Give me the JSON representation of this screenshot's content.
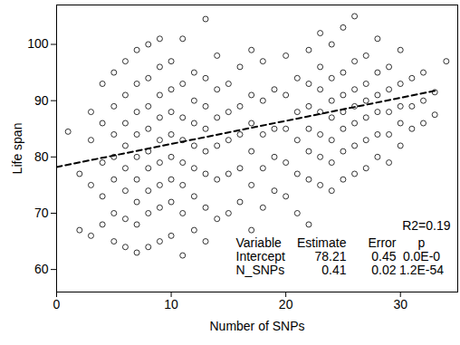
{
  "chart_data": {
    "type": "scatter",
    "x_label": "Number of SNPs",
    "y_label": "Life span",
    "xlim": [
      0,
      35
    ],
    "xticks": [
      0,
      10,
      20,
      30
    ],
    "ylim": [
      56,
      107
    ],
    "yticks": [
      60,
      70,
      80,
      90,
      100
    ],
    "grid": false,
    "marker": "circle",
    "color": "#000000",
    "x": [
      1,
      2,
      2,
      3,
      3,
      3,
      3,
      4,
      4,
      4,
      4,
      4,
      5,
      5,
      5,
      5,
      5,
      5,
      5,
      6,
      6,
      6,
      6,
      6,
      6,
      6,
      6,
      7,
      7,
      7,
      7,
      7,
      7,
      7,
      7,
      7,
      8,
      8,
      8,
      8,
      8,
      8,
      8,
      8,
      8,
      9,
      9,
      9,
      9,
      9,
      9,
      9,
      9,
      9,
      10,
      10,
      10,
      10,
      10,
      10,
      10,
      10,
      11,
      11,
      11,
      11,
      11,
      11,
      11,
      11,
      12,
      12,
      12,
      12,
      12,
      12,
      12,
      13,
      13,
      13,
      13,
      13,
      13,
      13,
      13,
      14,
      14,
      14,
      14,
      14,
      14,
      15,
      15,
      15,
      15,
      15,
      16,
      16,
      16,
      16,
      16,
      17,
      17,
      17,
      17,
      17,
      17,
      18,
      18,
      18,
      18,
      18,
      19,
      19,
      19,
      19,
      20,
      20,
      20,
      20,
      20,
      21,
      21,
      21,
      21,
      21,
      22,
      22,
      22,
      22,
      22,
      22,
      22,
      23,
      23,
      23,
      23,
      23,
      23,
      23,
      24,
      24,
      24,
      24,
      24,
      24,
      24,
      25,
      25,
      25,
      25,
      25,
      25,
      25,
      26,
      26,
      26,
      26,
      26,
      26,
      26,
      27,
      27,
      27,
      27,
      27,
      27,
      28,
      28,
      28,
      28,
      28,
      28,
      29,
      29,
      29,
      29,
      29,
      30,
      30,
      30,
      30,
      30,
      31,
      31,
      31,
      32,
      32,
      32,
      33,
      33,
      34
    ],
    "values": [
      84.5,
      67,
      77,
      66,
      75,
      83,
      88,
      68,
      73,
      79,
      86,
      93,
      65,
      70,
      76,
      80,
      84,
      89,
      95,
      64,
      69,
      74,
      78,
      82,
      86,
      91,
      97,
      63,
      68,
      72,
      76,
      80,
      84,
      88,
      93,
      99,
      64,
      70,
      74,
      78,
      81,
      85,
      89,
      94,
      100,
      65,
      71,
      75,
      79,
      83,
      87,
      91,
      96,
      101,
      66,
      72,
      76,
      80,
      84,
      88,
      92,
      97,
      62.5,
      70,
      75,
      79,
      83,
      87,
      93,
      101,
      67,
      73,
      78,
      82,
      86,
      90,
      95,
      65,
      71,
      77,
      81,
      85,
      89,
      94,
      104.5,
      69,
      76,
      82,
      87,
      92,
      98,
      70,
      77,
      83,
      88,
      93,
      72,
      78,
      84,
      89,
      96,
      67,
      75,
      81,
      86,
      91,
      99,
      71,
      78,
      84,
      90,
      97,
      74,
      80,
      85,
      92,
      73,
      79,
      85,
      91,
      98,
      70,
      77,
      83,
      88,
      94,
      68,
      76,
      81,
      85,
      89,
      93,
      99,
      75,
      80,
      84,
      88,
      92,
      96,
      102,
      74,
      79,
      83,
      87,
      90,
      94,
      100,
      76,
      81,
      85,
      88,
      91,
      95,
      103,
      77,
      82,
      86,
      89,
      92,
      97,
      105,
      78,
      83,
      87,
      90,
      93,
      98,
      80,
      84,
      88,
      91,
      95,
      101,
      79,
      84,
      88,
      92,
      96,
      82,
      86,
      89,
      93,
      99,
      85,
      89,
      94,
      86,
      90,
      95,
      87.5,
      91.5,
      97
    ],
    "fit_line": {
      "x": [
        0,
        33
      ],
      "values": [
        78.21,
        91.74
      ],
      "line_style": "dashed",
      "color": "#000000"
    },
    "annotation": "R2=0.19",
    "stats_table": {
      "header": [
        "Variable",
        "Estimate",
        "Error",
        "p"
      ],
      "rows": [
        [
          "Intercept",
          "78.21",
          "0.45",
          "0.0E-0"
        ],
        [
          "N_SNPs",
          "0.41",
          "0.02",
          "1.2E-54"
        ]
      ]
    }
  }
}
